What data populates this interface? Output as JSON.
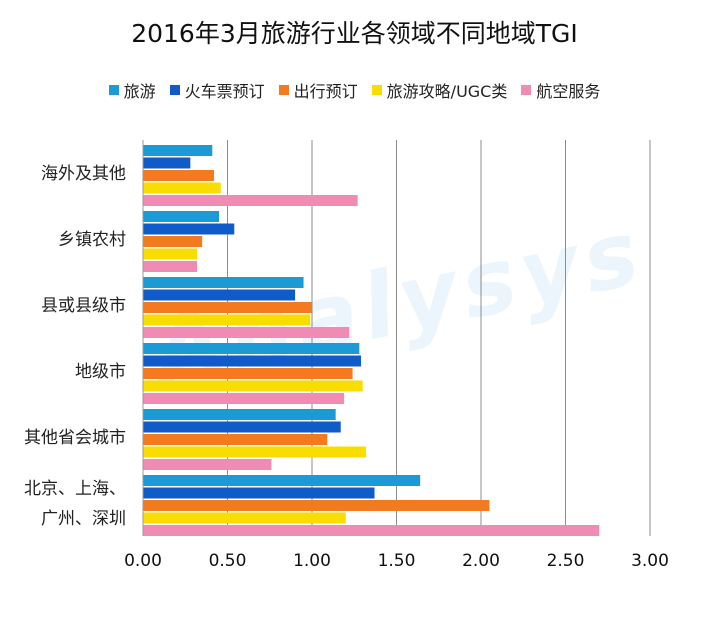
{
  "chart_data": {
    "type": "bar",
    "orientation": "horizontal",
    "title": "2016年3月旅游行业各领域不同地域TGI",
    "categories": [
      "海外及其他",
      "乡镇农村",
      "县或县级市",
      "地级市",
      "其他省会城市",
      "北京、上海、广州、深圳"
    ],
    "category_lines": [
      [
        "海外及其他"
      ],
      [
        "乡镇农村"
      ],
      [
        "县或县级市"
      ],
      [
        "地级市"
      ],
      [
        "其他省会城市"
      ],
      [
        "北京、上海、",
        "广州、深圳"
      ]
    ],
    "series": [
      {
        "name": "旅游",
        "color": "#1b9ad6",
        "values": [
          0.41,
          0.45,
          0.95,
          1.28,
          1.14,
          1.64
        ]
      },
      {
        "name": "火车票预订",
        "color": "#0f5cc8",
        "values": [
          0.28,
          0.54,
          0.9,
          1.29,
          1.17,
          1.37
        ]
      },
      {
        "name": "出行预订",
        "color": "#f47a1f",
        "values": [
          0.42,
          0.35,
          1.0,
          1.24,
          1.09,
          2.05
        ]
      },
      {
        "name": "旅游攻略/UGC类",
        "color": "#f9dd00",
        "values": [
          0.46,
          0.32,
          0.99,
          1.3,
          1.32,
          1.2
        ]
      },
      {
        "name": "航空服务",
        "color": "#f08cb4",
        "values": [
          1.27,
          0.32,
          1.22,
          1.19,
          0.76,
          2.7
        ]
      }
    ],
    "xlim": [
      0,
      3
    ],
    "xticks": [
      0.0,
      0.5,
      1.0,
      1.5,
      2.0,
      2.5,
      3.0
    ],
    "xtick_labels": [
      "0.00",
      "0.50",
      "1.00",
      "1.50",
      "2.00",
      "2.50",
      "3.00"
    ],
    "grid": true,
    "legend_position": "top"
  },
  "watermark": "Analysys"
}
